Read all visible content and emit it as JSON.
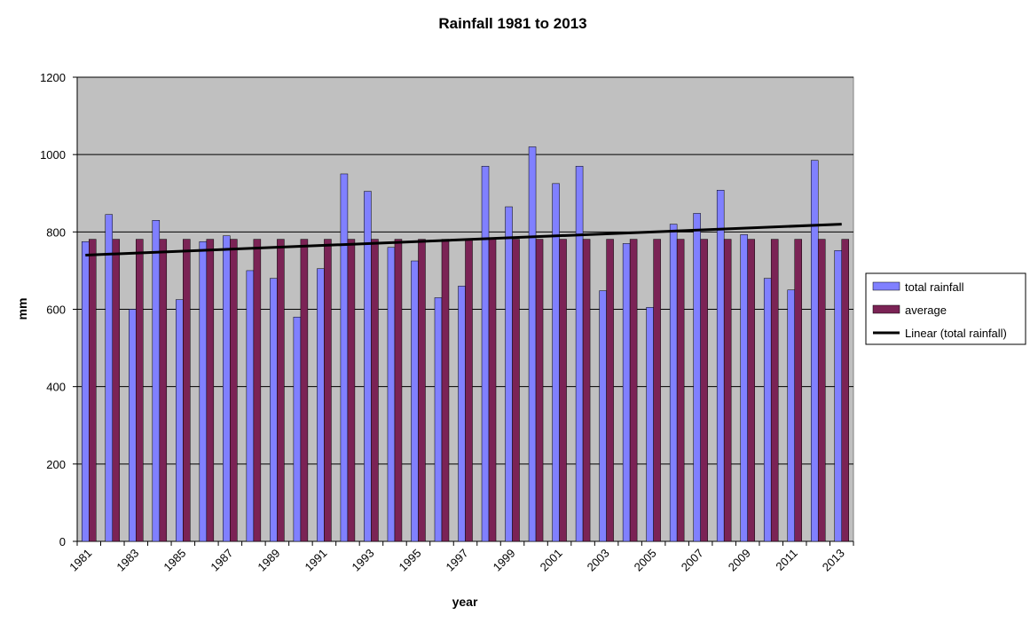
{
  "chart_data": {
    "type": "bar",
    "title": "Rainfall 1981 to 2013",
    "xlabel": "year",
    "ylabel": "mm",
    "ylim": [
      0,
      1200
    ],
    "yticks": [
      0,
      200,
      400,
      600,
      800,
      1000,
      1200
    ],
    "grid": true,
    "legend_position": "right",
    "categories": [
      "1981",
      "1982",
      "1983",
      "1984",
      "1985",
      "1986",
      "1987",
      "1988",
      "1989",
      "1990",
      "1991",
      "1992",
      "1993",
      "1994",
      "1995",
      "1996",
      "1997",
      "1998",
      "1999",
      "2000",
      "2001",
      "2002",
      "2003",
      "2004",
      "2005",
      "2006",
      "2007",
      "2008",
      "2009",
      "2010",
      "2011",
      "2012",
      "2013"
    ],
    "x_tick_labels": [
      "1981",
      "1983",
      "1985",
      "1987",
      "1989",
      "1991",
      "1993",
      "1995",
      "1997",
      "1999",
      "2001",
      "2003",
      "2005",
      "2007",
      "2009",
      "2011",
      "2013"
    ],
    "series": [
      {
        "name": "total rainfall",
        "type": "bar",
        "color": "#8080ff",
        "values": [
          775,
          845,
          600,
          830,
          625,
          775,
          790,
          700,
          680,
          580,
          705,
          950,
          905,
          760,
          725,
          630,
          660,
          970,
          865,
          1020,
          925,
          970,
          648,
          770,
          605,
          820,
          848,
          908,
          793,
          680,
          650,
          985,
          752
        ]
      },
      {
        "name": "average",
        "type": "bar",
        "color": "#7b2355",
        "values": [
          781,
          781,
          781,
          781,
          781,
          781,
          781,
          781,
          781,
          781,
          781,
          781,
          781,
          781,
          781,
          781,
          781,
          781,
          781,
          781,
          781,
          781,
          781,
          781,
          781,
          781,
          781,
          781,
          781,
          781,
          781,
          781,
          781
        ]
      },
      {
        "name": "Linear (total rainfall)",
        "type": "line",
        "color": "#000000",
        "x": [
          "1981",
          "2013"
        ],
        "values": [
          740,
          820
        ]
      }
    ],
    "plot_background": "#c0c0c0"
  }
}
